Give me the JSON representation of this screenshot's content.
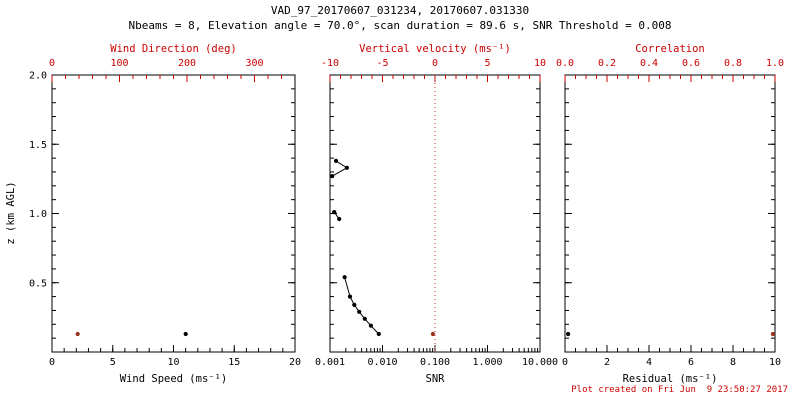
{
  "title": "VAD_97_20170607_031234, 20170607.031330",
  "subtitle": "Nbeams = 8, Elevation angle = 70.0°, scan duration = 89.6 s, SNR Threshold = 0.008",
  "footer": "Plot created on Fri Jun  9 23:50:27 2017",
  "colors": {
    "accent_red": "#cc0000",
    "data_red": "#993322",
    "refline_red": "#cc3322",
    "black": "#000000"
  },
  "y_axis": {
    "label": "z (km AGL)",
    "lim": [
      0.0,
      2.0
    ],
    "ticks": [
      0.0,
      0.5,
      1.0,
      1.5,
      2.0
    ],
    "tick_labels": [
      "",
      "0.5",
      "1.0",
      "1.5",
      "2.0"
    ],
    "minor_step": 0.1
  },
  "chart_data": [
    {
      "name": "wind",
      "type": "scatter",
      "x_bottom": {
        "label": "Wind Speed (ms⁻¹)",
        "min": 0,
        "max": 20,
        "ticks": [
          0,
          5,
          10,
          15,
          20
        ],
        "tick_labels": [
          "0",
          "5",
          "10",
          "15",
          "20"
        ],
        "minor_step": 1
      },
      "x_top": {
        "label": "Wind Direction (deg)",
        "min": 0,
        "max": 360,
        "ticks": [
          0,
          100,
          200,
          300
        ],
        "tick_labels": [
          "0",
          "100",
          "200",
          "300"
        ],
        "minor_step": 20
      },
      "series": [
        {
          "name": "wind-speed",
          "axis": "bottom",
          "color": "#000000",
          "line": false,
          "points": [
            [
              11.0,
              0.13
            ]
          ]
        },
        {
          "name": "wind-direction",
          "axis": "top",
          "color": "#993322",
          "line": false,
          "points": [
            [
              38.0,
              0.13
            ]
          ]
        }
      ]
    },
    {
      "name": "snr",
      "type": "line",
      "x_bottom": {
        "label": "SNR",
        "scale": "log",
        "min": 0.001,
        "max": 10.0,
        "ticks": [
          0.001,
          0.01,
          0.1,
          1.0,
          10.0
        ],
        "tick_labels": [
          "0.001",
          "0.010",
          "0.100",
          "1.000",
          "10.000"
        ]
      },
      "x_top": {
        "label": "Vertical velocity (ms⁻¹)",
        "min": -10,
        "max": 10,
        "ticks": [
          -10,
          -5,
          0,
          5,
          10
        ],
        "tick_labels": [
          "-10",
          "-5",
          "0",
          "5",
          "10"
        ],
        "minor_step": 1
      },
      "refline": {
        "axis": "top",
        "value": 0,
        "style": "dotted",
        "color": "#cc3322"
      },
      "series": [
        {
          "name": "snr-profile",
          "axis": "bottom",
          "color": "#000000",
          "line": true,
          "segments": [
            [
              [
                0.0085,
                0.13
              ],
              [
                0.006,
                0.19
              ],
              [
                0.0046,
                0.24
              ],
              [
                0.0036,
                0.29
              ],
              [
                0.0029,
                0.34
              ],
              [
                0.0024,
                0.4
              ],
              [
                0.0019,
                0.54
              ]
            ],
            [
              [
                0.0015,
                0.96
              ],
              [
                0.0012,
                1.01
              ]
            ],
            [
              [
                0.0011,
                1.27
              ],
              [
                0.0021,
                1.33
              ],
              [
                0.0013,
                1.38
              ]
            ]
          ]
        },
        {
          "name": "vertical-velocity",
          "axis": "top",
          "color": "#993322",
          "line": false,
          "points": [
            [
              -0.2,
              0.13
            ]
          ]
        }
      ]
    },
    {
      "name": "residual",
      "type": "scatter",
      "x_bottom": {
        "label": "Residual (ms⁻¹)",
        "min": 0,
        "max": 10,
        "ticks": [
          0,
          2,
          4,
          6,
          8,
          10
        ],
        "tick_labels": [
          "0",
          "2",
          "4",
          "6",
          "8",
          "10"
        ],
        "minor_step": 0.5
      },
      "x_top": {
        "label": "Correlation",
        "min": 0.0,
        "max": 1.0,
        "ticks": [
          0.0,
          0.2,
          0.4,
          0.6,
          0.8,
          1.0
        ],
        "tick_labels": [
          "0.0",
          "0.2",
          "0.4",
          "0.6",
          "0.8",
          "1.0"
        ],
        "minor_step": 0.05
      },
      "series": [
        {
          "name": "residual",
          "axis": "bottom",
          "color": "#000000",
          "line": false,
          "points": [
            [
              0.15,
              0.13
            ]
          ]
        },
        {
          "name": "correlation",
          "axis": "top",
          "color": "#993322",
          "line": false,
          "points": [
            [
              0.99,
              0.13
            ]
          ]
        }
      ]
    }
  ]
}
